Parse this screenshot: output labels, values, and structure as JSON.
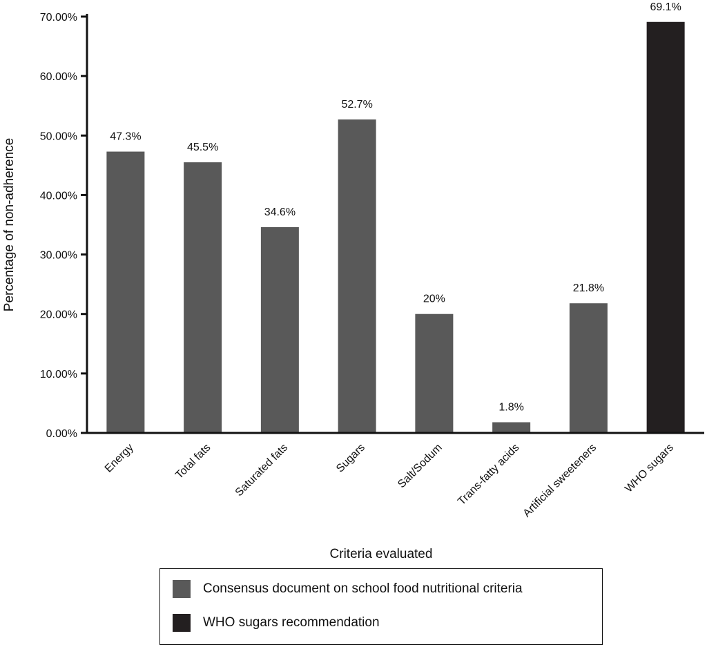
{
  "chart_data": {
    "type": "bar",
    "categories": [
      "Energy",
      "Total fats",
      "Saturated fats",
      "Sugars",
      "Salt/Sodum",
      "Trans-fatty acids",
      "Artificial sweeteners",
      "WHO sugars"
    ],
    "values": [
      47.3,
      45.5,
      34.6,
      52.7,
      20,
      1.8,
      21.8,
      69.1
    ],
    "value_labels": [
      "47.3%",
      "45.5%",
      "34.6%",
      "52.7%",
      "20%",
      "1.8%",
      "21.8%",
      "69.1%"
    ],
    "bar_series": [
      0,
      0,
      0,
      0,
      0,
      0,
      0,
      1
    ],
    "series": [
      {
        "name": "Consensus document on school food nutritional criteria",
        "color": "#595959"
      },
      {
        "name": "WHO sugars recommendation",
        "color": "#231f20"
      }
    ],
    "xlabel": "Criteria evaluated",
    "ylabel": "Percentage of non-adherence",
    "ylim": [
      0,
      70
    ],
    "yticks": [
      0,
      10,
      20,
      30,
      40,
      50,
      60,
      70
    ],
    "ytick_labels": [
      "0.00%",
      "10.00%",
      "20.00%",
      "30.00%",
      "40.00%",
      "50.00%",
      "60.00%",
      "70.00%"
    ],
    "grid": false,
    "legend_position": "bottom"
  }
}
